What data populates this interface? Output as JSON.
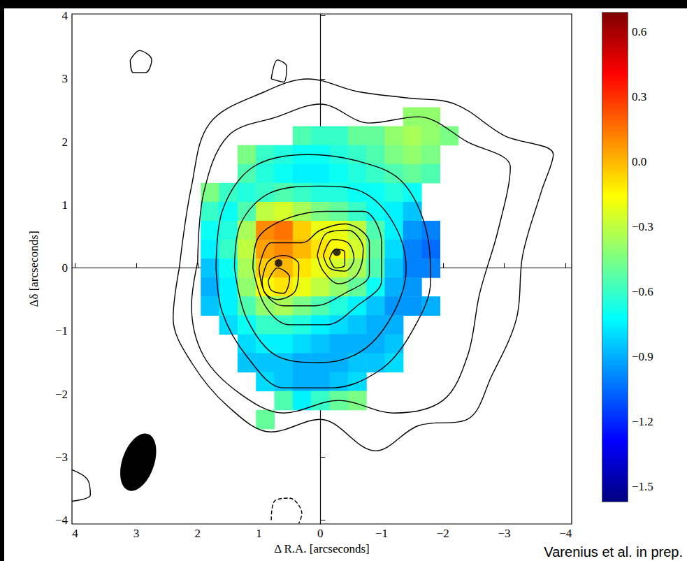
{
  "chart_data": {
    "type": "heatmap",
    "x_label": "Δ R.A. [arcseconds]",
    "y_label": "Δδ [arcseconds]",
    "annotations": [
      "Varenius et al. in prep."
    ],
    "xlim": [
      4.05,
      -4.1
    ],
    "ylim": [
      -4.06,
      4.03
    ],
    "xticks": [
      4,
      3,
      2,
      1,
      0,
      {
        "value": -1,
        "label": "−1"
      },
      {
        "value": -2,
        "label": "−2"
      },
      {
        "value": -3,
        "label": "−3"
      },
      {
        "value": -4,
        "label": "−4"
      }
    ],
    "yticks": [
      {
        "value": -4,
        "label": "−4"
      },
      {
        "value": -3,
        "label": "−3"
      },
      {
        "value": -2,
        "label": "−2"
      },
      {
        "value": -1,
        "label": "−1"
      },
      0,
      1,
      2,
      3,
      4
    ],
    "grid": false,
    "cells": {
      "x": [
        2.4,
        2.1,
        1.8,
        1.5,
        1.2,
        0.9,
        0.6,
        0.3,
        0.0,
        -0.3,
        -0.6,
        -0.9,
        -1.2,
        -1.5,
        -1.8,
        -2.1,
        -2.4
      ],
      "y": [
        2.4,
        2.1,
        1.8,
        1.5,
        1.2,
        0.9,
        0.6,
        0.3,
        0.0,
        -0.3,
        -0.6,
        -0.9,
        -1.2,
        -1.5,
        -1.8,
        -2.1,
        -2.4
      ],
      "values": [
        [
          null,
          null,
          null,
          null,
          null,
          null,
          null,
          null,
          null,
          null,
          null,
          null,
          null,
          -0.4,
          -0.4,
          null,
          null
        ],
        [
          null,
          null,
          null,
          null,
          null,
          null,
          null,
          -0.55,
          -0.6,
          -0.6,
          -0.5,
          -0.5,
          -0.4,
          -0.35,
          -0.4,
          -0.45,
          null
        ],
        [
          null,
          null,
          null,
          null,
          -0.45,
          -0.6,
          -0.65,
          -0.7,
          -0.7,
          -0.65,
          -0.6,
          -0.55,
          -0.45,
          -0.4,
          -0.45,
          null,
          null
        ],
        [
          null,
          null,
          null,
          null,
          -0.55,
          -0.65,
          -0.7,
          -0.75,
          -0.75,
          -0.7,
          -0.65,
          -0.6,
          -0.55,
          -0.5,
          -0.55,
          null,
          null
        ],
        [
          null,
          null,
          -0.45,
          -0.6,
          -0.65,
          -0.6,
          -0.55,
          -0.6,
          -0.65,
          -0.65,
          -0.7,
          -0.7,
          -0.65,
          -0.7,
          null,
          null,
          null
        ],
        [
          null,
          null,
          -0.6,
          -0.7,
          -0.55,
          -0.3,
          -0.25,
          -0.35,
          -0.45,
          -0.5,
          -0.6,
          -0.7,
          -0.75,
          -0.85,
          null,
          null,
          null
        ],
        [
          null,
          null,
          -0.7,
          -0.65,
          -0.35,
          0.1,
          0.15,
          -0.05,
          -0.2,
          -0.2,
          -0.3,
          -0.55,
          -0.75,
          -0.95,
          -1.0,
          null,
          null
        ],
        [
          null,
          null,
          -0.75,
          -0.6,
          -0.3,
          0.05,
          0.1,
          0.0,
          -0.1,
          -0.15,
          -0.25,
          -0.5,
          -0.8,
          -1.0,
          -1.05,
          null,
          null
        ],
        [
          null,
          null,
          -0.85,
          -0.7,
          -0.35,
          -0.05,
          0.0,
          -0.1,
          -0.2,
          -0.25,
          -0.35,
          -0.55,
          -0.85,
          -1.0,
          -1.0,
          null,
          null
        ],
        [
          null,
          null,
          -0.9,
          -0.75,
          -0.4,
          -0.15,
          -0.1,
          -0.2,
          -0.3,
          -0.4,
          -0.5,
          -0.7,
          -0.9,
          -0.95,
          null,
          null,
          null
        ],
        [
          null,
          null,
          -0.85,
          -0.75,
          -0.55,
          -0.4,
          -0.35,
          -0.45,
          -0.55,
          -0.65,
          -0.75,
          -0.85,
          -0.95,
          -0.95,
          -0.9,
          null,
          null
        ],
        [
          null,
          null,
          null,
          -0.8,
          -0.7,
          -0.6,
          -0.6,
          -0.65,
          -0.75,
          -0.8,
          -0.85,
          -0.9,
          -0.9,
          null,
          null,
          null,
          null
        ],
        [
          null,
          null,
          null,
          null,
          -0.8,
          -0.75,
          -0.75,
          -0.8,
          -0.85,
          -0.9,
          -0.9,
          -0.9,
          -0.85,
          null,
          null,
          null,
          null
        ],
        [
          null,
          null,
          null,
          null,
          -0.85,
          -0.85,
          -0.85,
          -0.9,
          -0.9,
          -0.9,
          -0.85,
          -0.85,
          -0.8,
          null,
          null,
          null,
          null
        ],
        [
          null,
          null,
          null,
          null,
          null,
          -0.8,
          -0.85,
          -0.9,
          -0.9,
          -0.85,
          -0.8,
          null,
          null,
          null,
          null,
          null,
          null
        ],
        [
          null,
          null,
          null,
          null,
          null,
          null,
          -0.55,
          -0.75,
          -0.6,
          -0.5,
          -0.45,
          null,
          null,
          null,
          null,
          null,
          null
        ],
        [
          null,
          null,
          null,
          null,
          null,
          -0.5,
          null,
          null,
          null,
          null,
          null,
          null,
          null,
          null,
          null,
          null,
          null
        ]
      ]
    },
    "colorbar": {
      "range": [
        -1.57,
        0.69
      ],
      "ticks": [
        0.6,
        0.3,
        {
          "value": 0,
          "label": "0.0"
        },
        {
          "value": -0.3,
          "label": "−0.3"
        },
        {
          "value": -0.6,
          "label": "−0.6"
        },
        {
          "value": -0.9,
          "label": "−0.9"
        },
        {
          "value": -1.2,
          "label": "−1.2"
        },
        {
          "value": -1.5,
          "label": "−1.5"
        }
      ]
    },
    "contours": {
      "color": "#000000",
      "lines": [
        {
          "line_style": "solid",
          "points": [
            [
              2.3,
              0.0
            ],
            [
              2.1,
              1.3
            ],
            [
              1.8,
              2.3
            ],
            [
              0.9,
              2.8
            ],
            [
              0.2,
              3.0
            ],
            [
              -0.6,
              2.8
            ],
            [
              -1.4,
              2.7
            ],
            [
              -2.2,
              2.6
            ],
            [
              -3.0,
              2.1
            ],
            [
              -3.8,
              1.8
            ],
            [
              -3.6,
              1.2
            ],
            [
              -3.3,
              0.2
            ],
            [
              -3.2,
              -0.8
            ],
            [
              -2.8,
              -1.7
            ],
            [
              -2.4,
              -2.4
            ],
            [
              -1.6,
              -2.5
            ],
            [
              -0.9,
              -2.9
            ],
            [
              0.0,
              -2.4
            ],
            [
              0.8,
              -2.6
            ],
            [
              1.5,
              -2.2
            ],
            [
              2.1,
              -1.5
            ],
            [
              2.4,
              -0.8
            ],
            [
              2.3,
              0.0
            ]
          ]
        },
        {
          "line_style": "solid",
          "points": [
            [
              2.0,
              0.1
            ],
            [
              1.9,
              1.2
            ],
            [
              1.5,
              2.1
            ],
            [
              0.7,
              2.4
            ],
            [
              0.0,
              2.6
            ],
            [
              -0.8,
              2.3
            ],
            [
              -1.6,
              2.4
            ],
            [
              -2.4,
              2.0
            ],
            [
              -3.1,
              1.6
            ],
            [
              -2.9,
              0.6
            ],
            [
              -2.6,
              -0.4
            ],
            [
              -2.4,
              -1.4
            ],
            [
              -2.0,
              -2.1
            ],
            [
              -1.2,
              -2.3
            ],
            [
              -0.3,
              -2.1
            ],
            [
              0.6,
              -2.3
            ],
            [
              1.3,
              -2.0
            ],
            [
              1.9,
              -1.4
            ],
            [
              2.1,
              -0.6
            ],
            [
              2.0,
              0.1
            ]
          ]
        },
        {
          "line_style": "solid",
          "points": [
            [
              1.7,
              0.0
            ],
            [
              1.6,
              0.9
            ],
            [
              1.1,
              1.6
            ],
            [
              0.2,
              1.8
            ],
            [
              -0.6,
              1.7
            ],
            [
              -1.3,
              1.4
            ],
            [
              -1.7,
              0.7
            ],
            [
              -1.8,
              -0.2
            ],
            [
              -1.5,
              -1.0
            ],
            [
              -1.0,
              -1.6
            ],
            [
              -0.2,
              -1.9
            ],
            [
              0.6,
              -1.9
            ],
            [
              1.2,
              -1.4
            ],
            [
              1.6,
              -0.7
            ],
            [
              1.7,
              0.0
            ]
          ]
        },
        {
          "line_style": "solid",
          "points": [
            [
              1.4,
              0.0
            ],
            [
              1.3,
              0.7
            ],
            [
              0.8,
              1.2
            ],
            [
              0.0,
              1.3
            ],
            [
              -0.7,
              1.2
            ],
            [
              -1.2,
              0.7
            ],
            [
              -1.4,
              0.0
            ],
            [
              -1.2,
              -0.7
            ],
            [
              -0.7,
              -1.3
            ],
            [
              0.0,
              -1.5
            ],
            [
              0.7,
              -1.4
            ],
            [
              1.2,
              -0.8
            ],
            [
              1.4,
              0.0
            ]
          ]
        },
        {
          "line_style": "solid",
          "points": [
            [
              1.1,
              0.0
            ],
            [
              1.0,
              0.5
            ],
            [
              0.5,
              0.8
            ],
            [
              -0.1,
              0.9
            ],
            [
              -0.7,
              0.9
            ],
            [
              -1.0,
              0.4
            ],
            [
              -1.0,
              -0.2
            ],
            [
              -0.6,
              -0.6
            ],
            [
              -0.1,
              -0.9
            ],
            [
              0.5,
              -0.9
            ],
            [
              0.9,
              -0.6
            ],
            [
              1.1,
              0.0
            ]
          ]
        },
        {
          "line_style": "solid",
          "points": [
            [
              1.0,
              0.0
            ],
            [
              0.8,
              0.4
            ],
            [
              0.3,
              0.4
            ],
            [
              0.0,
              0.6
            ],
            [
              -0.4,
              0.7
            ],
            [
              -0.8,
              0.4
            ],
            [
              -0.8,
              -0.1
            ],
            [
              -0.4,
              -0.4
            ],
            [
              0.1,
              -0.6
            ],
            [
              0.6,
              -0.6
            ],
            [
              0.9,
              -0.4
            ],
            [
              1.0,
              0.0
            ]
          ]
        },
        {
          "line_style": "solid",
          "points": [
            [
              0.95,
              -0.2
            ],
            [
              0.85,
              0.1
            ],
            [
              0.6,
              0.2
            ],
            [
              0.35,
              0.05
            ],
            [
              0.4,
              -0.35
            ],
            [
              0.7,
              -0.5
            ],
            [
              0.9,
              -0.4
            ],
            [
              0.95,
              -0.2
            ]
          ]
        },
        {
          "line_style": "solid",
          "points": [
            [
              0.05,
              0.2
            ],
            [
              -0.1,
              0.55
            ],
            [
              -0.45,
              0.6
            ],
            [
              -0.7,
              0.3
            ],
            [
              -0.6,
              -0.1
            ],
            [
              -0.3,
              -0.25
            ],
            [
              -0.05,
              -0.05
            ],
            [
              0.05,
              0.2
            ]
          ]
        },
        {
          "line_style": "solid",
          "points": [
            [
              0.85,
              -0.2
            ],
            [
              0.7,
              0.0
            ],
            [
              0.5,
              -0.15
            ],
            [
              0.6,
              -0.4
            ],
            [
              0.8,
              -0.35
            ],
            [
              0.85,
              -0.2
            ]
          ]
        },
        {
          "line_style": "solid",
          "points": [
            [
              -0.05,
              0.2
            ],
            [
              -0.2,
              0.45
            ],
            [
              -0.45,
              0.4
            ],
            [
              -0.55,
              0.15
            ],
            [
              -0.4,
              -0.05
            ],
            [
              -0.15,
              0.0
            ],
            [
              -0.05,
              0.2
            ]
          ]
        },
        {
          "line_style": "solid",
          "points": [
            [
              -0.15,
              0.15
            ],
            [
              -0.25,
              0.3
            ],
            [
              -0.4,
              0.25
            ],
            [
              -0.4,
              0.05
            ],
            [
              -0.25,
              0.0
            ],
            [
              -0.15,
              0.15
            ]
          ]
        },
        {
          "line_style": "solid",
          "points": [
            [
              3.1,
              3.3
            ],
            [
              2.95,
              3.45
            ],
            [
              2.75,
              3.3
            ],
            [
              2.85,
              3.1
            ],
            [
              3.05,
              3.1
            ],
            [
              3.1,
              3.3
            ]
          ]
        },
        {
          "line_style": "solid",
          "points": [
            [
              0.8,
              3.0
            ],
            [
              0.7,
              3.3
            ],
            [
              0.55,
              3.2
            ],
            [
              0.6,
              2.95
            ],
            [
              0.8,
              3.0
            ]
          ]
        },
        {
          "line_style": "solid",
          "points": [
            [
              4.05,
              -3.2
            ],
            [
              3.8,
              -3.35
            ],
            [
              3.75,
              -3.6
            ],
            [
              4.05,
              -3.7
            ]
          ]
        },
        {
          "line_style": "dashed",
          "points": [
            [
              0.8,
              -4.0
            ],
            [
              0.75,
              -3.7
            ],
            [
              0.5,
              -3.65
            ],
            [
              0.3,
              -3.9
            ],
            [
              0.35,
              -4.05
            ]
          ]
        }
      ]
    },
    "points": {
      "x": [
        0.68,
        -0.27
      ],
      "y": [
        0.08,
        0.25
      ],
      "marker": "circle",
      "color": "#000000"
    },
    "beam": {
      "x": 2.97,
      "y": -3.08,
      "major": 0.95,
      "minor": 0.52,
      "pa": -20,
      "color": "#000000"
    }
  }
}
